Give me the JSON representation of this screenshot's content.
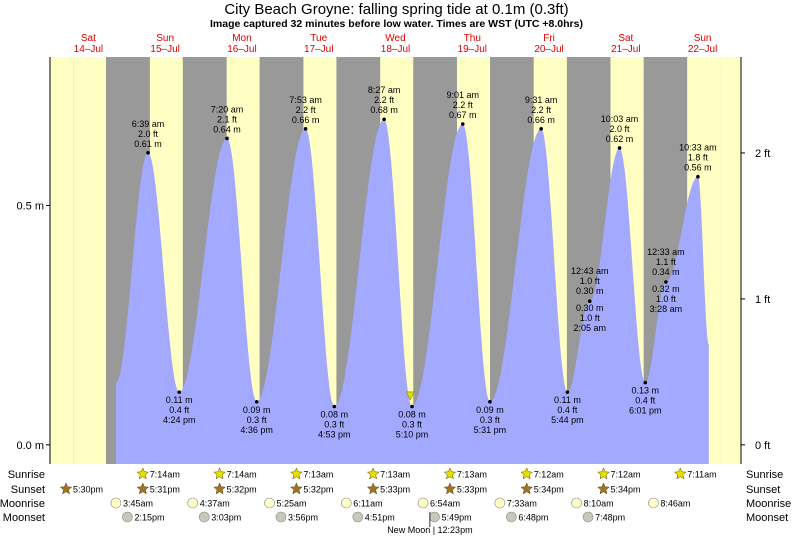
{
  "header": {
    "title": "City Beach Groyne: falling  spring tide at 0.1m (0.3ft)",
    "subtitle": "Image captured 32 minutes before low water. Times are WST (UTC +8.0hrs)"
  },
  "colors": {
    "day": "#ffffc4",
    "night": "#999999",
    "tide": "#a3a9ff",
    "day_label": "#e00000"
  },
  "chart_data": {
    "type": "area",
    "title": "City Beach Groyne: falling  spring tide at 0.1m (0.3ft)",
    "days": [
      {
        "name": "Sat",
        "date": "14–Jul"
      },
      {
        "name": "Sun",
        "date": "15–Jul"
      },
      {
        "name": "Mon",
        "date": "16–Jul"
      },
      {
        "name": "Tue",
        "date": "17–Jul"
      },
      {
        "name": "Wed",
        "date": "18–Jul"
      },
      {
        "name": "Thu",
        "date": "19–Jul"
      },
      {
        "name": "Fri",
        "date": "20–Jul"
      },
      {
        "name": "Sat",
        "date": "21–Jul"
      },
      {
        "name": "Sun",
        "date": "22–Jul"
      }
    ],
    "x_range_days": [
      0,
      9
    ],
    "y_range_m": [
      -0.04,
      0.81
    ],
    "left_axis": [
      {
        "value": 0.0,
        "label": "0.0 m"
      },
      {
        "value": 0.5,
        "label": "0.5 m"
      }
    ],
    "right_axis": [
      {
        "value": 0.0,
        "label": "0 ft"
      },
      {
        "value": 0.3048,
        "label": "1 ft"
      },
      {
        "value": 0.6096,
        "label": "2 ft"
      }
    ],
    "daylight": [
      {
        "day": 0,
        "sunrise": 7.25,
        "sunset": 17.49
      },
      {
        "day": 1,
        "sunrise": 7.23,
        "sunset": 17.51
      },
      {
        "day": 2,
        "sunrise": 7.23,
        "sunset": 17.52
      },
      {
        "day": 3,
        "sunrise": 7.22,
        "sunset": 17.53
      },
      {
        "day": 4,
        "sunrise": 7.22,
        "sunset": 17.55
      },
      {
        "day": 5,
        "sunrise": 7.22,
        "sunset": 17.55
      },
      {
        "day": 6,
        "sunrise": 7.2,
        "sunset": 17.57
      },
      {
        "day": 7,
        "sunrise": 7.2,
        "sunset": 17.57
      },
      {
        "day": 8,
        "sunrise": 7.18,
        "sunset": 17.58
      }
    ],
    "tide_span": {
      "start": 0.86,
      "end": 8.58,
      "start_value": 0.13,
      "end_value": 0.21
    },
    "tide_events": [
      {
        "t": 1.277,
        "h": 0.61,
        "labels": [
          "6:39 am",
          "2.0 ft",
          "0.61 m"
        ],
        "type": "high"
      },
      {
        "t": 1.683,
        "h": 0.11,
        "labels": [
          "0.11 m",
          "0.4 ft",
          "4:24 pm"
        ],
        "type": "low"
      },
      {
        "t": 2.306,
        "h": 0.64,
        "labels": [
          "7:20 am",
          "2.1 ft",
          "0.64 m"
        ],
        "type": "high"
      },
      {
        "t": 2.692,
        "h": 0.09,
        "labels": [
          "0.09 m",
          "0.3 ft",
          "4:36 pm"
        ],
        "type": "low"
      },
      {
        "t": 3.329,
        "h": 0.66,
        "labels": [
          "7:53 am",
          "2.2 ft",
          "0.66 m"
        ],
        "type": "high"
      },
      {
        "t": 3.703,
        "h": 0.08,
        "labels": [
          "0.08 m",
          "0.3 ft",
          "4:53 pm"
        ],
        "type": "low"
      },
      {
        "t": 4.352,
        "h": 0.68,
        "labels": [
          "8:27 am",
          "2.2 ft",
          "0.68 m"
        ],
        "type": "high"
      },
      {
        "t": 4.715,
        "h": 0.08,
        "labels": [
          "0.08 m",
          "0.3 ft",
          "5:10 pm"
        ],
        "type": "low"
      },
      {
        "t": 5.376,
        "h": 0.67,
        "labels": [
          "9:01 am",
          "2.2 ft",
          "0.67 m"
        ],
        "type": "high"
      },
      {
        "t": 5.73,
        "h": 0.09,
        "labels": [
          "0.09 m",
          "0.3 ft",
          "5:31 pm"
        ],
        "type": "low"
      },
      {
        "t": 6.397,
        "h": 0.66,
        "labels": [
          "9:31 am",
          "2.2 ft",
          "0.66 m"
        ],
        "type": "high"
      },
      {
        "t": 6.739,
        "h": 0.11,
        "labels": [
          "0.11 m",
          "0.4 ft",
          "5:44 pm"
        ],
        "type": "low"
      },
      {
        "t": 7.418,
        "h": 0.62,
        "labels": [
          "10:03 am",
          "2.0 ft",
          "0.62 m"
        ],
        "type": "high"
      },
      {
        "t": 7.753,
        "h": 0.13,
        "labels": [
          "0.13 m",
          "0.4 ft",
          "6:01 pm"
        ],
        "type": "low"
      },
      {
        "t": 8.439,
        "h": 0.56,
        "labels": [
          "10:33 am",
          "1.8 ft",
          "0.56 m"
        ],
        "type": "high"
      }
    ],
    "small_events": [
      {
        "t": 7.03,
        "h": 0.3,
        "upper": [
          "12:43 am",
          "1.0 ft",
          "0.30 m"
        ],
        "lower": [
          "0.30 m",
          "1.0 ft",
          "2:05 am"
        ]
      },
      {
        "t": 8.022,
        "h": 0.34,
        "upper": [
          "12:33 am",
          "1.1 ft",
          "0.34 m"
        ],
        "lower": [
          "0.32 m",
          "1.0 ft",
          "3:28 am"
        ]
      }
    ],
    "current": {
      "t": 4.692,
      "h": 0.1
    },
    "sun_moon_rows": [
      {
        "label": "Sunrise",
        "events": [
          {
            "t": 1.3,
            "text": "7:14am"
          },
          {
            "t": 2.3,
            "text": "7:14am"
          },
          {
            "t": 3.3,
            "text": "7:13am"
          },
          {
            "t": 4.3,
            "text": "7:13am"
          },
          {
            "t": 5.3,
            "text": "7:13am"
          },
          {
            "t": 6.3,
            "text": "7:12am"
          },
          {
            "t": 7.3,
            "text": "7:12am"
          },
          {
            "t": 8.3,
            "text": "7:11am"
          }
        ]
      },
      {
        "label": "Sunset",
        "events": [
          {
            "t": 0.3,
            "text": "5:30pm"
          },
          {
            "t": 1.3,
            "text": "5:31pm"
          },
          {
            "t": 2.3,
            "text": "5:32pm"
          },
          {
            "t": 3.3,
            "text": "5:32pm"
          },
          {
            "t": 4.3,
            "text": "5:33pm"
          },
          {
            "t": 5.3,
            "text": "5:33pm"
          },
          {
            "t": 6.3,
            "text": "5:34pm"
          },
          {
            "t": 7.3,
            "text": "5:34pm"
          }
        ]
      },
      {
        "label": "Moonrise",
        "events": [
          {
            "t": 0.95,
            "text": "3:45am"
          },
          {
            "t": 1.95,
            "text": "4:37am"
          },
          {
            "t": 2.95,
            "text": "5:25am"
          },
          {
            "t": 3.95,
            "text": "6:11am"
          },
          {
            "t": 4.95,
            "text": "6:54am"
          },
          {
            "t": 5.95,
            "text": "7:33am"
          },
          {
            "t": 6.95,
            "text": "8:10am"
          },
          {
            "t": 7.95,
            "text": "8:46am"
          }
        ]
      },
      {
        "label": "Moonset",
        "events": [
          {
            "t": 1.1,
            "text": "2:15pm"
          },
          {
            "t": 2.1,
            "text": "3:03pm"
          },
          {
            "t": 3.1,
            "text": "3:56pm"
          },
          {
            "t": 4.1,
            "text": "4:51pm"
          },
          {
            "t": 5.1,
            "text": "5:49pm"
          },
          {
            "t": 6.1,
            "text": "6:48pm"
          },
          {
            "t": 7.1,
            "text": "7:48pm"
          }
        ]
      }
    ],
    "moon_phase": {
      "t": 5.0,
      "text": "New Moon | 12:23pm"
    }
  }
}
